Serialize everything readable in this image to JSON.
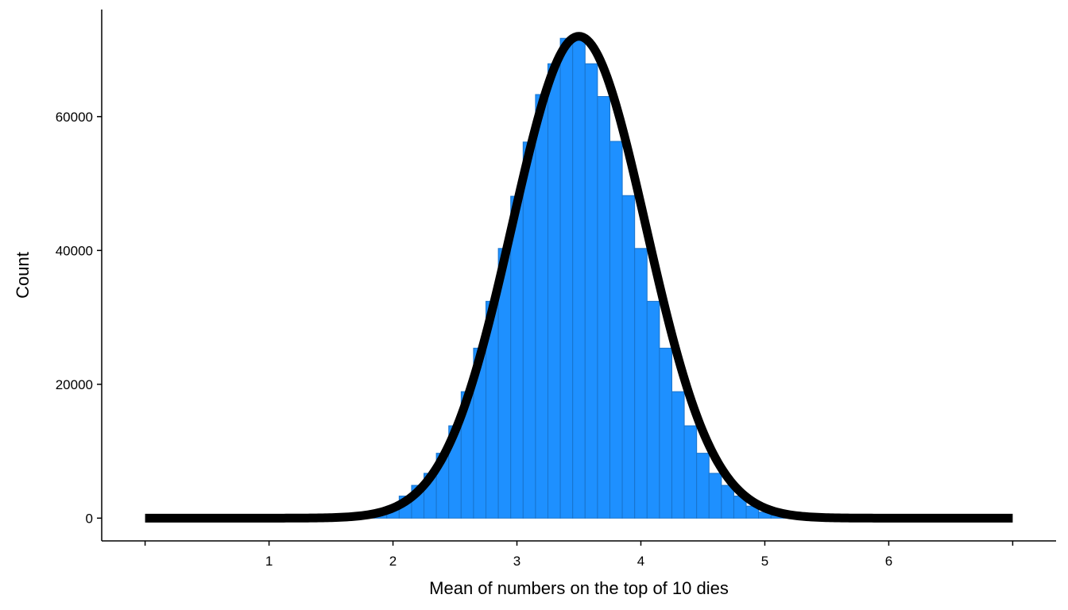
{
  "chart_data": {
    "type": "bar",
    "title": "",
    "xlabel": "Mean of numbers on the top of 10 dies",
    "ylabel": "Count",
    "xlim": [
      -0.35,
      7.35
    ],
    "ylim": [
      -3400,
      76000
    ],
    "x_ticks": [
      {
        "value": 0,
        "label": ""
      },
      {
        "value": 1,
        "label": "1"
      },
      {
        "value": 2,
        "label": "2"
      },
      {
        "value": 3,
        "label": "3"
      },
      {
        "value": 4,
        "label": "4"
      },
      {
        "value": 5,
        "label": "5"
      },
      {
        "value": 6,
        "label": "6"
      },
      {
        "value": 7,
        "label": ""
      }
    ],
    "y_ticks": [
      {
        "value": 0,
        "label": "0"
      },
      {
        "value": 20000,
        "label": "20000"
      },
      {
        "value": 40000,
        "label": "40000"
      },
      {
        "value": 60000,
        "label": "60000"
      }
    ],
    "grid": false,
    "legend": "none",
    "histogram": {
      "bin_width": 0.1,
      "bin_centers": [
        1.8,
        1.9,
        2.0,
        2.1,
        2.2,
        2.3,
        2.4,
        2.5,
        2.6,
        2.7,
        2.8,
        2.9,
        3.0,
        3.1,
        3.2,
        3.3,
        3.4,
        3.5,
        3.6,
        3.7,
        3.8,
        3.9,
        4.0,
        4.1,
        4.2,
        4.3,
        4.4,
        4.5,
        4.6,
        4.7,
        4.8,
        4.9,
        5.0,
        5.1,
        5.2
      ],
      "counts": [
        400,
        900,
        1800,
        3300,
        4900,
        6700,
        9700,
        13800,
        18900,
        25400,
        32400,
        40300,
        48100,
        56200,
        63300,
        67900,
        71700,
        71800,
        67900,
        63000,
        56300,
        48200,
        40300,
        32400,
        25400,
        18900,
        13800,
        9700,
        6700,
        4900,
        3300,
        1800,
        900,
        400,
        100
      ],
      "fill": "#1E90FF",
      "outline": "#1873CC"
    },
    "curve": {
      "type": "normal-density",
      "mean": 3.5,
      "sd": 0.54,
      "peak": 72000,
      "x_range": [
        0,
        7
      ],
      "color": "#000000"
    }
  }
}
